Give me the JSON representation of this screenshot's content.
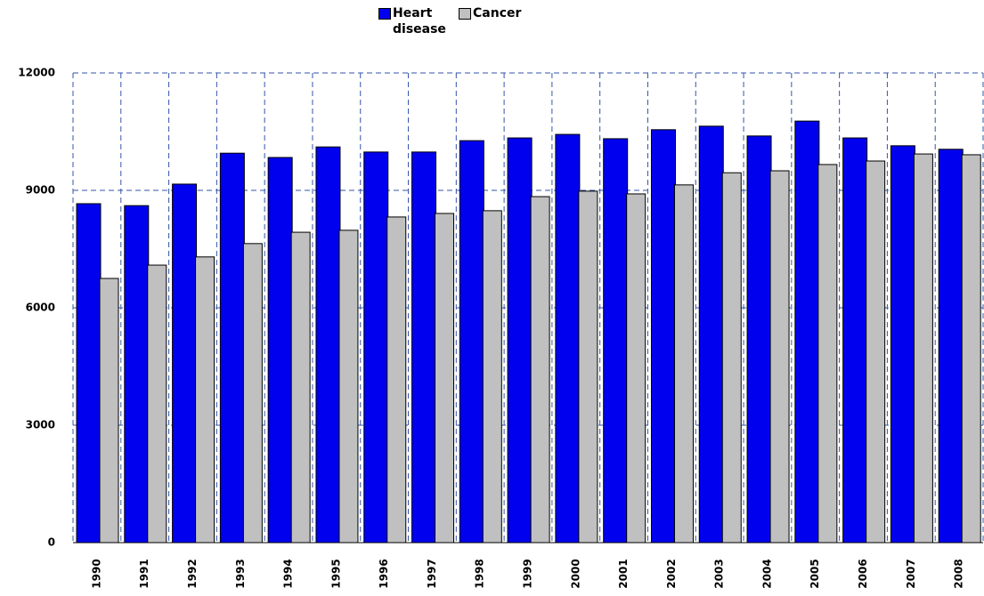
{
  "chart_data": {
    "type": "bar",
    "categories": [
      "1990",
      "1991",
      "1992",
      "1993",
      "1994",
      "1995",
      "1996",
      "1997",
      "1998",
      "1999",
      "2000",
      "2001",
      "2002",
      "2003",
      "2004",
      "2005",
      "2006",
      "2007",
      "2008"
    ],
    "series": [
      {
        "name": "Heart disease",
        "color": "#0000ee",
        "values": [
          8660,
          8610,
          9160,
          9950,
          9840,
          10110,
          9980,
          9980,
          10270,
          10340,
          10430,
          10320,
          10550,
          10640,
          10390,
          10770,
          10340,
          10140,
          10050
        ]
      },
      {
        "name": "Cancer",
        "color": "#c0c0c0",
        "values": [
          6750,
          7090,
          7300,
          7640,
          7930,
          7980,
          8320,
          8410,
          8480,
          8840,
          8980,
          8910,
          9140,
          9450,
          9500,
          9660,
          9750,
          9930,
          9910
        ]
      }
    ],
    "ylim": [
      0,
      12000
    ],
    "yticks": [
      0,
      3000,
      6000,
      9000,
      12000
    ],
    "grid": true
  }
}
